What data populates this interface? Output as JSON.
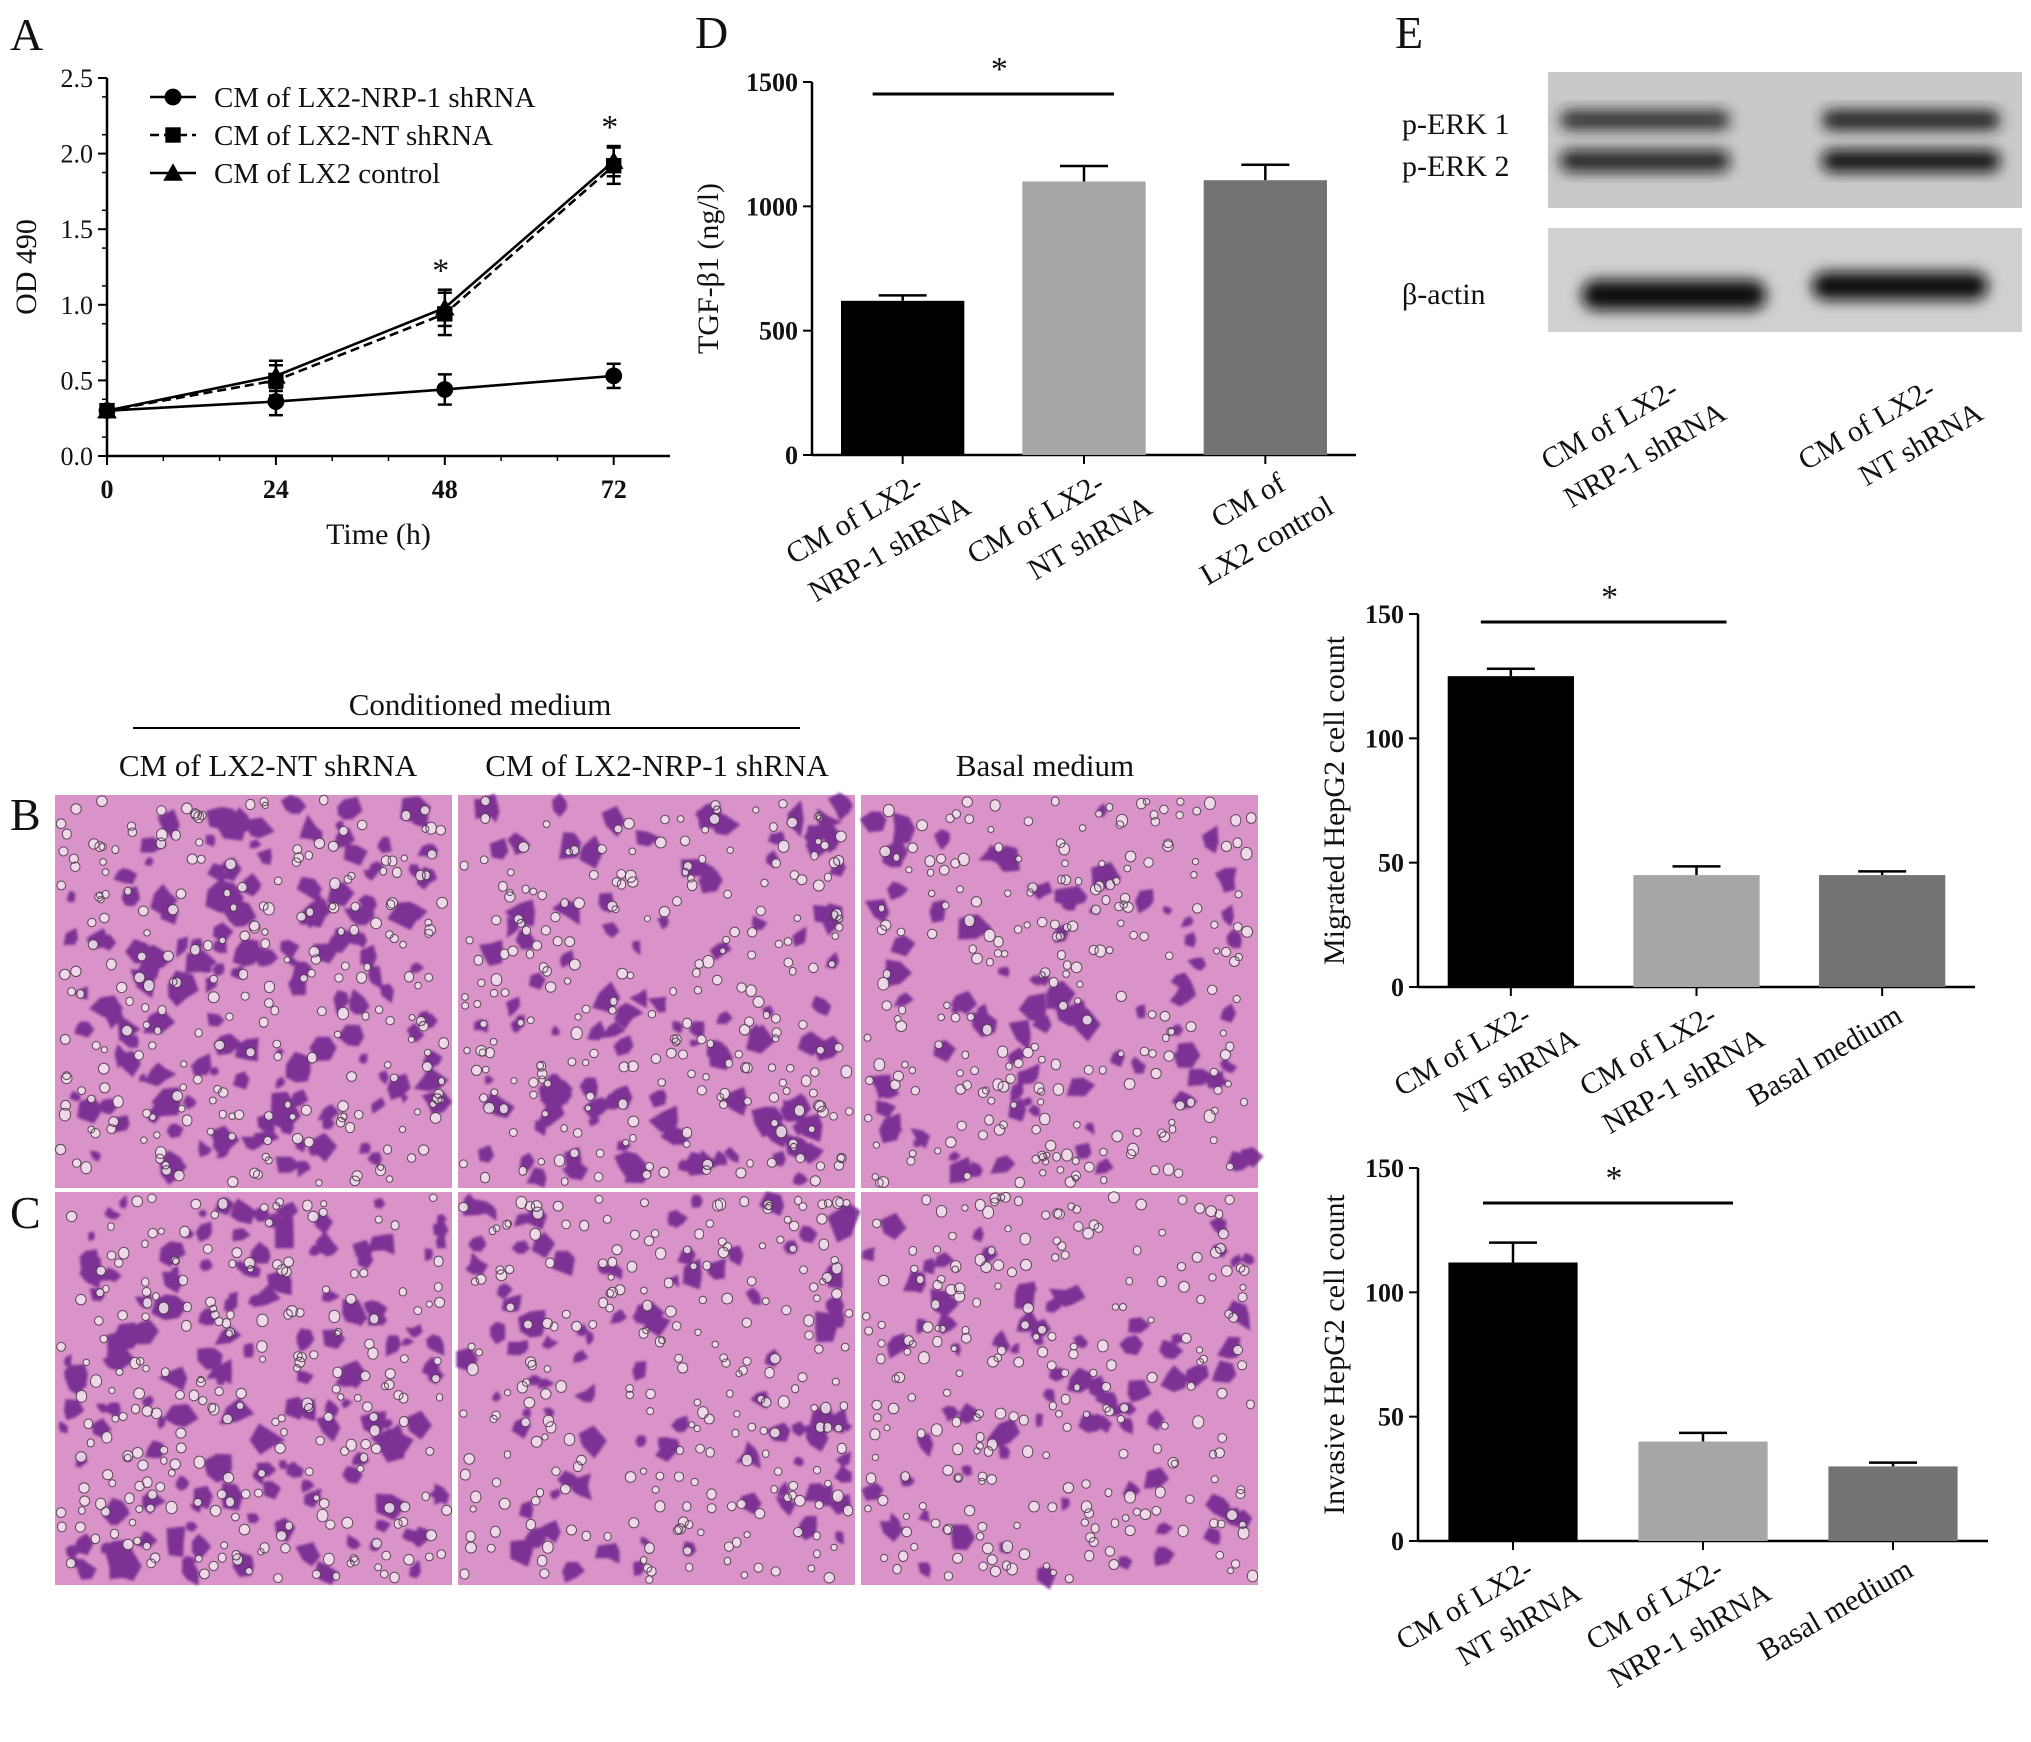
{
  "panels": {
    "A": {
      "letter": "A",
      "chart_data": {
        "type": "line",
        "x": [
          0,
          24,
          48,
          72
        ],
        "xlabel": "Time  (h)",
        "ylabel": "OD 490",
        "xlim": [
          0,
          80
        ],
        "ylim": [
          0.0,
          2.5
        ],
        "xticks": [
          "0",
          "24",
          "48",
          "72"
        ],
        "yticks": [
          "0.0",
          "0.5",
          "1.0",
          "1.5",
          "2.0",
          "2.5"
        ],
        "legend_position": "top-left",
        "series": [
          {
            "name": "CM of LX2-NRP-1 shRNA",
            "marker": "circle",
            "line": "solid",
            "values": [
              0.3,
              0.36,
              0.44,
              0.53
            ],
            "errors": [
              0.03,
              0.09,
              0.1,
              0.08
            ]
          },
          {
            "name": "CM of LX2-NT shRNA",
            "marker": "square",
            "line": "dashed",
            "values": [
              0.3,
              0.5,
              0.94,
              1.92
            ],
            "errors": [
              0.03,
              0.1,
              0.14,
              0.12
            ]
          },
          {
            "name": "CM of LX2 control",
            "marker": "triangle",
            "line": "solid",
            "values": [
              0.3,
              0.53,
              0.98,
              1.95
            ],
            "errors": [
              0.03,
              0.1,
              0.12,
              0.1
            ]
          }
        ],
        "significance": [
          {
            "x": 48,
            "label": "*"
          },
          {
            "x": 72,
            "label": "*"
          }
        ]
      }
    },
    "D": {
      "letter": "D",
      "chart_data": {
        "type": "bar",
        "categories": [
          [
            "CM of LX2-",
            "NRP-1 shRNA"
          ],
          [
            "CM of LX2-",
            "NT shRNA"
          ],
          [
            "CM of",
            "LX2  control"
          ]
        ],
        "values": [
          620,
          1100,
          1105
        ],
        "errors": [
          22,
          62,
          62
        ],
        "colors": [
          "#000000",
          "#a6a6a6",
          "#737373"
        ],
        "ylabel": "TGF-β1 (ng/l)",
        "ylim": [
          0,
          1500
        ],
        "yticks": [
          "0",
          "500",
          "1000",
          "1500"
        ],
        "significance": {
          "from": 0,
          "to": 1,
          "label": "*"
        }
      }
    },
    "E": {
      "letter": "E",
      "blot_rows": [
        "p-ERK 1",
        "p-ERK 2",
        "β-actin"
      ],
      "lanes": [
        [
          "CM of LX2-",
          "NRP-1 shRNA"
        ],
        [
          "CM of LX2-",
          "NT shRNA"
        ]
      ],
      "band_intensity": {
        "p_erk_lane1": 0.7,
        "p_erk_lane2": 0.95,
        "actin_lane1": 1.0,
        "actin_lane2": 1.0
      }
    },
    "BC": {
      "header": "Conditioned medium",
      "columns": [
        "CM of LX2-NT shRNA",
        "CM of LX2-NRP-1 shRNA",
        "Basal medium"
      ],
      "row_letters": [
        "B",
        "C"
      ],
      "stain_color": "#6a1f8a",
      "background_color": "#d993c8",
      "relative_cell_density": {
        "B": [
          1.0,
          0.75,
          0.55
        ],
        "C": [
          1.0,
          0.6,
          0.5
        ]
      }
    },
    "migration": {
      "chart_data": {
        "type": "bar",
        "categories": [
          [
            "CM of LX2-",
            "NT shRNA"
          ],
          [
            "CM of LX2-",
            "NRP-1 shRNA"
          ],
          [
            "Basal medium"
          ]
        ],
        "values": [
          125,
          45,
          45
        ],
        "errors": [
          3,
          3.5,
          1.5
        ],
        "colors": [
          "#000000",
          "#a6a6a6",
          "#737373"
        ],
        "ylabel": "Migrated HepG2 cell count",
        "ylim": [
          0,
          150
        ],
        "yticks": [
          "0",
          "50",
          "100",
          "150"
        ],
        "significance": {
          "from": 0,
          "to": 1,
          "label": "*"
        }
      }
    },
    "invasion": {
      "chart_data": {
        "type": "bar",
        "categories": [
          [
            "CM of LX2-",
            "NT shRNA"
          ],
          [
            "CM of LX2-",
            "NRP-1 shRNA"
          ],
          [
            "Basal medium"
          ]
        ],
        "values": [
          112,
          40,
          30
        ],
        "errors": [
          8,
          3.5,
          1.5
        ],
        "colors": [
          "#000000",
          "#a6a6a6",
          "#737373"
        ],
        "ylabel": "Invasive HepG2 cell count",
        "ylim": [
          0,
          150
        ],
        "yticks": [
          "0",
          "50",
          "100",
          "150"
        ],
        "significance": {
          "from": 0,
          "to": 1,
          "label": "*"
        }
      }
    }
  }
}
